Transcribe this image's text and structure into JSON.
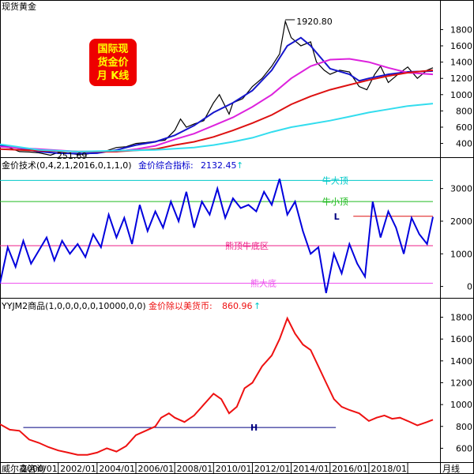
{
  "footer": {
    "source": "威尔鑫咨询",
    "period_label": "月线"
  },
  "colors": {
    "price": "#000000",
    "ma_blue": "#1515cc",
    "ma_magenta": "#dd22dd",
    "ma_red": "#dd1111",
    "ma_cyan": "#33ddee",
    "osc": "#0000dd",
    "ratio": "#ee1111",
    "zone_bull_top": "#00c8c8",
    "zone_bull_small": "#22bb22",
    "zone_mid": "#ee2288",
    "zone_bear": "#ee55ee",
    "h_line": "#000080",
    "badge_bg": "#ee0000",
    "badge_text": "#ffff00"
  },
  "panel1": {
    "title": "现货黄金",
    "badge_lines": [
      "国际现",
      "货金价",
      "月 K线"
    ],
    "high_label": "1920.80",
    "low_label": "251.69"
  },
  "panel2": {
    "title": "金价技术(0,4,2,1,2016,0,1,1,0)",
    "indicator_name": "金价综合指标:",
    "indicator_value": "2132.45",
    "zone_labels": {
      "bull_top": "牛大顶",
      "bull_small": "牛小顶",
      "mid": "熊顶牛底区",
      "bear_bottom": "熊大底"
    },
    "l_marker": "L"
  },
  "panel3": {
    "title": "YYJM2商品(1,0,0,0,0,0,10000,0,0)",
    "indicator_name": "金价除以美货币:",
    "indicator_value": "860.96",
    "h_marker": "H"
  },
  "chart_data": [
    {
      "type": "line",
      "title": "现货黄金",
      "x_ticks": [
        "2000/01",
        "2002/01",
        "2004/01",
        "2006/01",
        "2008/01",
        "2010/01",
        "2012/01",
        "2014/01",
        "2016/01",
        "2018/01"
      ],
      "x_range": [
        1997.0,
        2019.3
      ],
      "yticks": [
        400,
        600,
        800,
        1000,
        1200,
        1400,
        1600,
        1800
      ],
      "ylim": [
        250,
        1950
      ],
      "annotations": [
        {
          "text": "1920.80",
          "x": 2011.7,
          "y": 1920.8
        },
        {
          "text": "251.69",
          "x": 1999.6,
          "y": 251.69
        }
      ],
      "series": [
        {
          "key": "price",
          "color_key": "price",
          "x": [
            1997.0,
            1997.5,
            1998.0,
            1998.5,
            1999.0,
            1999.6,
            2000.0,
            2000.5,
            2001.0,
            2001.5,
            2002.0,
            2002.5,
            2003.0,
            2003.5,
            2004.0,
            2004.5,
            2005.0,
            2005.5,
            2006.0,
            2006.3,
            2006.6,
            2007.0,
            2007.5,
            2008.0,
            2008.3,
            2008.8,
            2009.0,
            2009.5,
            2010.0,
            2010.5,
            2011.0,
            2011.4,
            2011.7,
            2012.0,
            2012.5,
            2013.0,
            2013.3,
            2013.7,
            2014.0,
            2014.5,
            2015.0,
            2015.5,
            2015.9,
            2016.3,
            2016.6,
            2017.0,
            2017.5,
            2018.0,
            2018.5,
            2019.0,
            2019.3
          ],
          "y": [
            365,
            345,
            300,
            295,
            285,
            255,
            290,
            280,
            265,
            270,
            295,
            310,
            350,
            360,
            400,
            410,
            425,
            440,
            560,
            700,
            600,
            640,
            680,
            900,
            1000,
            760,
            900,
            950,
            1100,
            1200,
            1350,
            1500,
            1900,
            1700,
            1600,
            1650,
            1400,
            1300,
            1250,
            1300,
            1280,
            1100,
            1060,
            1250,
            1350,
            1150,
            1250,
            1340,
            1200,
            1300,
            1330
          ]
        },
        {
          "key": "ma_blue",
          "color_key": "ma_blue",
          "x": [
            1997.0,
            1998.0,
            1999.0,
            2000.0,
            2001.0,
            2002.0,
            2003.0,
            2004.0,
            2005.0,
            2006.0,
            2007.0,
            2008.0,
            2009.0,
            2010.0,
            2011.0,
            2011.8,
            2012.5,
            2013.0,
            2014.0,
            2015.0,
            2015.5,
            2016.0,
            2017.0,
            2018.0,
            2019.3
          ],
          "y": [
            380,
            340,
            300,
            280,
            275,
            280,
            320,
            380,
            420,
            500,
            620,
            780,
            900,
            1050,
            1300,
            1600,
            1700,
            1600,
            1320,
            1250,
            1170,
            1200,
            1250,
            1280,
            1290
          ]
        },
        {
          "key": "ma_magenta",
          "color_key": "ma_magenta",
          "x": [
            1997.0,
            1999.0,
            2001.0,
            2003.0,
            2004.0,
            2005.0,
            2006.0,
            2007.0,
            2008.0,
            2009.0,
            2010.0,
            2011.0,
            2012.0,
            2013.0,
            2014.0,
            2015.0,
            2016.0,
            2017.0,
            2018.0,
            2019.3
          ],
          "y": [
            360,
            330,
            300,
            300,
            330,
            370,
            450,
            520,
            620,
            720,
            850,
            1000,
            1200,
            1350,
            1430,
            1440,
            1400,
            1330,
            1270,
            1250
          ]
        },
        {
          "key": "ma_red",
          "color_key": "ma_red",
          "x": [
            1997.0,
            1999.0,
            2001.0,
            2003.0,
            2005.0,
            2006.0,
            2007.0,
            2008.0,
            2009.0,
            2010.0,
            2011.0,
            2012.0,
            2013.0,
            2014.0,
            2015.0,
            2016.0,
            2017.0,
            2018.0,
            2019.3
          ],
          "y": [
            330,
            310,
            300,
            300,
            330,
            380,
            420,
            480,
            560,
            650,
            750,
            880,
            980,
            1060,
            1120,
            1180,
            1230,
            1270,
            1300
          ]
        },
        {
          "key": "ma_cyan",
          "color_key": "ma_cyan",
          "x": [
            1997.0,
            1999.0,
            2001.0,
            2003.0,
            2005.0,
            2007.0,
            2008.0,
            2009.0,
            2010.0,
            2011.0,
            2012.0,
            2013.0,
            2014.0,
            2015.0,
            2016.0,
            2017.0,
            2018.0,
            2019.3
          ],
          "y": [
            390,
            320,
            300,
            310,
            320,
            350,
            380,
            420,
            470,
            540,
            600,
            640,
            680,
            730,
            780,
            820,
            860,
            890
          ]
        }
      ]
    },
    {
      "type": "line",
      "title": "金价技术(0,4,2,1,2016,0,1,1,0)",
      "x_ticks": [
        "2000/01",
        "2002/01",
        "2004/01",
        "2006/01",
        "2008/01",
        "2010/01",
        "2012/01",
        "2014/01",
        "2016/01",
        "2018/01"
      ],
      "x_range": [
        1997.0,
        2019.3
      ],
      "yticks": [
        0,
        1000,
        2000,
        3000
      ],
      "ylim": [
        -300,
        3500
      ],
      "reference_lines": [
        {
          "label": "牛大顶",
          "y": 3250,
          "color_key": "zone_bull_top"
        },
        {
          "label": "牛小顶",
          "y": 2600,
          "color_key": "zone_bull_small"
        },
        {
          "label": "熊顶牛底区",
          "y": 1250,
          "color_key": "zone_mid"
        },
        {
          "label": "熊大底",
          "y": 100,
          "color_key": "zone_bear"
        },
        {
          "label": "L",
          "y": 2150,
          "color_key": "ma_red",
          "x_from": 2015.2
        }
      ],
      "series": [
        {
          "key": "indicator",
          "color_key": "osc",
          "x": [
            1997.0,
            1997.4,
            1997.8,
            1998.2,
            1998.6,
            1999.0,
            1999.4,
            1999.8,
            2000.2,
            2000.6,
            2001.0,
            2001.4,
            2001.8,
            2002.2,
            2002.6,
            2003.0,
            2003.4,
            2003.8,
            2004.2,
            2004.6,
            2005.0,
            2005.4,
            2005.8,
            2006.2,
            2006.6,
            2007.0,
            2007.4,
            2007.8,
            2008.2,
            2008.6,
            2009.0,
            2009.4,
            2009.8,
            2010.2,
            2010.6,
            2011.0,
            2011.4,
            2011.8,
            2012.2,
            2012.6,
            2013.0,
            2013.4,
            2013.8,
            2014.2,
            2014.6,
            2015.0,
            2015.4,
            2015.8,
            2016.2,
            2016.6,
            2017.0,
            2017.4,
            2017.8,
            2018.2,
            2018.6,
            2019.0,
            2019.3
          ],
          "y": [
            100,
            1200,
            600,
            1400,
            700,
            1100,
            1500,
            800,
            1400,
            1000,
            1300,
            900,
            1600,
            1200,
            2200,
            1500,
            2100,
            1300,
            2500,
            1700,
            2300,
            1800,
            2600,
            2000,
            2900,
            1800,
            2600,
            2200,
            3000,
            2100,
            2700,
            2400,
            2500,
            2300,
            2900,
            2500,
            3300,
            2200,
            2600,
            1700,
            1000,
            1200,
            -200,
            1000,
            400,
            1300,
            700,
            300,
            2600,
            1500,
            2300,
            1800,
            1000,
            2100,
            1600,
            1300,
            2130
          ]
        }
      ]
    },
    {
      "type": "line",
      "title": "YYJM2商品(1,0,0,0,0,0,10000,0,0)",
      "x_ticks": [
        "2000/01",
        "2002/01",
        "2004/01",
        "2006/01",
        "2008/01",
        "2010/01",
        "2012/01",
        "2014/01",
        "2016/01",
        "2018/01"
      ],
      "x_range": [
        1997.0,
        2019.3
      ],
      "yticks": [
        600,
        800,
        1000,
        1200,
        1400,
        1600,
        1800
      ],
      "ylim": [
        480,
        1840
      ],
      "reference_lines": [
        {
          "label": "H",
          "y": 790,
          "color_key": "h_line",
          "x_from": 1998.2,
          "x_to": 2014.3
        }
      ],
      "series": [
        {
          "key": "ratio",
          "color_key": "ratio",
          "x": [
            1997.0,
            1997.5,
            1998.0,
            1998.5,
            1999.0,
            1999.5,
            2000.0,
            2000.5,
            2001.0,
            2001.5,
            2002.0,
            2002.5,
            2003.0,
            2003.5,
            2004.0,
            2004.5,
            2005.0,
            2005.3,
            2005.7,
            2006.0,
            2006.5,
            2007.0,
            2007.5,
            2008.0,
            2008.4,
            2008.8,
            2009.2,
            2009.6,
            2010.0,
            2010.5,
            2011.0,
            2011.4,
            2011.8,
            2012.2,
            2012.6,
            2013.0,
            2013.4,
            2013.8,
            2014.2,
            2014.6,
            2015.0,
            2015.5,
            2016.0,
            2016.4,
            2016.8,
            2017.2,
            2017.6,
            2018.0,
            2018.5,
            2019.0,
            2019.3
          ],
          "y": [
            820,
            770,
            760,
            680,
            650,
            610,
            580,
            560,
            540,
            540,
            560,
            600,
            570,
            620,
            720,
            760,
            800,
            880,
            920,
            880,
            840,
            900,
            1000,
            1100,
            1050,
            920,
            980,
            1150,
            1200,
            1350,
            1450,
            1600,
            1790,
            1650,
            1550,
            1500,
            1350,
            1200,
            1050,
            980,
            950,
            920,
            850,
            880,
            900,
            870,
            880,
            850,
            810,
            840,
            861
          ]
        }
      ]
    }
  ]
}
